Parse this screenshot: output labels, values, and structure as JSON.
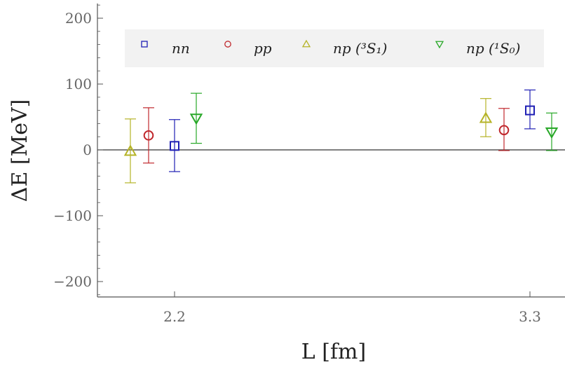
{
  "chart_data": {
    "type": "scatter",
    "title": "",
    "xlabel": "L [fm]",
    "ylabel": "ΔE [MeV]",
    "xticks": [
      "2.2",
      "3.3"
    ],
    "ylim": [
      -220,
      220
    ],
    "yticks": [
      -200,
      -100,
      0,
      100,
      200
    ],
    "ytick_labels": [
      "−200",
      "−100",
      "0",
      "100",
      "200"
    ],
    "zero_line": true,
    "grid": false,
    "legend_position": "top",
    "series": [
      {
        "name": "nn",
        "legend_label": "nn",
        "marker": "square",
        "color": "#1f1fb4",
        "points": [
          {
            "L": "2.2",
            "y": 6,
            "err_low": -33,
            "err_high": 46
          },
          {
            "L": "3.3",
            "y": 60,
            "err_low": 32,
            "err_high": 91
          }
        ]
      },
      {
        "name": "pp",
        "legend_label": "pp",
        "marker": "circle",
        "color": "#c0282d",
        "points": [
          {
            "L": "2.2",
            "y": 22,
            "err_low": -20,
            "err_high": 64
          },
          {
            "L": "3.3",
            "y": 30,
            "err_low": -1,
            "err_high": 63
          }
        ]
      },
      {
        "name": "np (3S1)",
        "legend_label": "np (³S₁)",
        "marker": "triangle-up",
        "color": "#b5b327",
        "points": [
          {
            "L": "2.2",
            "y": -2,
            "err_low": -50,
            "err_high": 47
          },
          {
            "L": "3.3",
            "y": 48,
            "err_low": 20,
            "err_high": 78
          }
        ]
      },
      {
        "name": "np (1S0)",
        "legend_label": "np (¹S₀)",
        "marker": "triangle-down",
        "color": "#28a828",
        "points": [
          {
            "L": "2.2",
            "y": 48,
            "err_low": 10,
            "err_high": 86
          },
          {
            "L": "3.3",
            "y": 27,
            "err_low": -1,
            "err_high": 56
          }
        ]
      }
    ]
  }
}
